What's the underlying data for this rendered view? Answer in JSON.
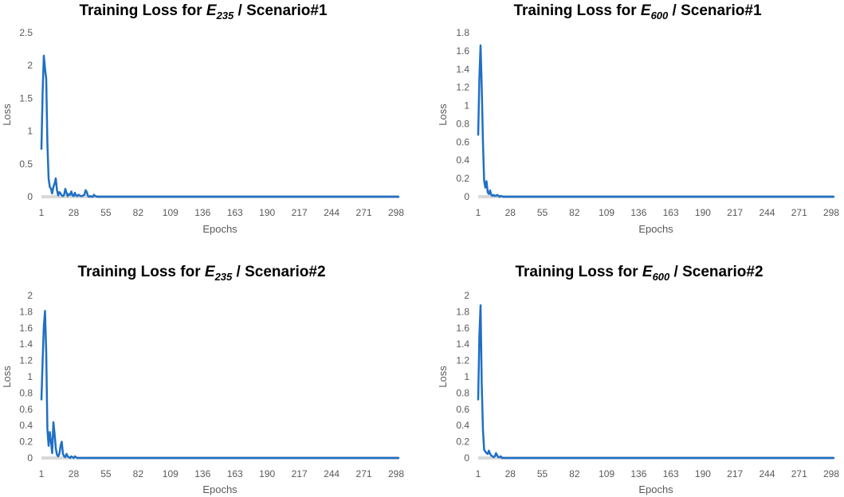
{
  "chart_data": [
    {
      "type": "line",
      "title": {
        "prefix": "Training Loss for ",
        "var": "E",
        "sub": "235",
        "suffix": " / Scenario#1"
      },
      "xlabel": "Epochs",
      "ylabel": "Loss",
      "x_tick_labels": [
        "1",
        "28",
        "55",
        "82",
        "109",
        "136",
        "163",
        "190",
        "217",
        "244",
        "271",
        "298"
      ],
      "y_tick_labels": [
        "0",
        "0.5",
        "1",
        "1.5",
        "2",
        "2.5"
      ],
      "xlim": [
        1,
        300
      ],
      "ylim": [
        0,
        2.5
      ],
      "grid": false,
      "color": "#1F6FC5",
      "series": [
        {
          "points": [
            [
              1,
              0.73
            ],
            [
              2,
              1.6
            ],
            [
              3,
              2.15
            ],
            [
              4,
              1.95
            ],
            [
              5,
              1.8
            ],
            [
              6,
              0.8
            ],
            [
              7,
              0.28
            ],
            [
              8,
              0.15
            ],
            [
              9,
              0.12
            ],
            [
              10,
              0.05
            ],
            [
              11,
              0.15
            ],
            [
              12,
              0.2
            ],
            [
              13,
              0.28
            ],
            [
              14,
              0.1
            ],
            [
              15,
              0.02
            ],
            [
              16,
              0.07
            ],
            [
              17,
              0.05
            ],
            [
              18,
              0.02
            ],
            [
              19,
              0.01
            ],
            [
              20,
              0.03
            ],
            [
              21,
              0.12
            ],
            [
              22,
              0.06
            ],
            [
              23,
              0.01
            ],
            [
              24,
              0.04
            ],
            [
              25,
              0.03
            ],
            [
              26,
              0.08
            ],
            [
              27,
              0.02
            ],
            [
              28,
              0.01
            ],
            [
              29,
              0.06
            ],
            [
              30,
              0.02
            ],
            [
              31,
              0.01
            ],
            [
              32,
              0.03
            ],
            [
              33,
              0.02
            ],
            [
              34,
              0.01
            ],
            [
              35,
              0.01
            ],
            [
              36,
              0.02
            ],
            [
              37,
              0.03
            ],
            [
              38,
              0.1
            ],
            [
              39,
              0.07
            ],
            [
              40,
              0.01
            ],
            [
              41,
              0.0
            ],
            [
              42,
              0.01
            ],
            [
              43,
              0.0
            ],
            [
              44,
              0.0
            ],
            [
              45,
              0.03
            ],
            [
              46,
              0.01
            ],
            [
              48,
              0.0
            ],
            [
              300,
              0.0
            ]
          ]
        }
      ]
    },
    {
      "type": "line",
      "title": {
        "prefix": "Training Loss for ",
        "var": "E",
        "sub": "600",
        "suffix": " / Scenario#1"
      },
      "xlabel": "Epochs",
      "ylabel": "Loss",
      "x_tick_labels": [
        "1",
        "28",
        "55",
        "82",
        "109",
        "136",
        "163",
        "190",
        "217",
        "244",
        "271",
        "298"
      ],
      "y_tick_labels": [
        "0",
        "0.2",
        "0.4",
        "0.6",
        "0.8",
        "1",
        "1.2",
        "1.4",
        "1.6",
        "1.8"
      ],
      "xlim": [
        1,
        300
      ],
      "ylim": [
        0,
        1.8
      ],
      "grid": false,
      "color": "#1F6FC5",
      "series": [
        {
          "points": [
            [
              1,
              0.68
            ],
            [
              2,
              1.3
            ],
            [
              3,
              1.66
            ],
            [
              4,
              1.2
            ],
            [
              5,
              0.6
            ],
            [
              6,
              0.18
            ],
            [
              7,
              0.1
            ],
            [
              8,
              0.17
            ],
            [
              9,
              0.05
            ],
            [
              10,
              0.03
            ],
            [
              11,
              0.07
            ],
            [
              12,
              0.02
            ],
            [
              13,
              0.01
            ],
            [
              14,
              0.02
            ],
            [
              15,
              0.01
            ],
            [
              16,
              0.01
            ],
            [
              17,
              0.02
            ],
            [
              18,
              0.01
            ],
            [
              19,
              0.0
            ],
            [
              20,
              0.01
            ],
            [
              22,
              0.0
            ],
            [
              300,
              0.0
            ]
          ]
        }
      ]
    },
    {
      "type": "line",
      "title": {
        "prefix": "Training Loss for ",
        "var": "E",
        "sub": "235",
        "suffix": " / Scenario#2"
      },
      "xlabel": "Epochs",
      "ylabel": "Loss",
      "x_tick_labels": [
        "1",
        "28",
        "55",
        "82",
        "109",
        "136",
        "163",
        "190",
        "217",
        "244",
        "271",
        "298"
      ],
      "y_tick_labels": [
        "0",
        "0.2",
        "0.4",
        "0.6",
        "0.8",
        "1",
        "1.2",
        "1.4",
        "1.6",
        "1.8",
        "2"
      ],
      "xlim": [
        1,
        300
      ],
      "ylim": [
        0,
        2
      ],
      "grid": false,
      "color": "#1F6FC5",
      "series": [
        {
          "points": [
            [
              1,
              0.72
            ],
            [
              2,
              1.2
            ],
            [
              3,
              1.62
            ],
            [
              4,
              1.81
            ],
            [
              5,
              1.3
            ],
            [
              6,
              0.35
            ],
            [
              7,
              0.15
            ],
            [
              8,
              0.32
            ],
            [
              9,
              0.2
            ],
            [
              10,
              0.06
            ],
            [
              11,
              0.44
            ],
            [
              12,
              0.3
            ],
            [
              13,
              0.12
            ],
            [
              14,
              0.04
            ],
            [
              15,
              0.02
            ],
            [
              16,
              0.05
            ],
            [
              17,
              0.15
            ],
            [
              18,
              0.2
            ],
            [
              19,
              0.05
            ],
            [
              20,
              0.02
            ],
            [
              21,
              0.01
            ],
            [
              22,
              0.05
            ],
            [
              23,
              0.02
            ],
            [
              24,
              0.01
            ],
            [
              25,
              0.0
            ],
            [
              26,
              0.02
            ],
            [
              27,
              0.01
            ],
            [
              28,
              0.0
            ],
            [
              29,
              0.02
            ],
            [
              30,
              0.01
            ],
            [
              31,
              0.0
            ],
            [
              33,
              0.0
            ],
            [
              300,
              0.0
            ]
          ]
        }
      ]
    },
    {
      "type": "line",
      "title": {
        "prefix": "Training Loss for ",
        "var": "E",
        "sub": "600",
        "suffix": " / Scenario#2"
      },
      "xlabel": "Epochs",
      "ylabel": "Loss",
      "x_tick_labels": [
        "1",
        "28",
        "55",
        "82",
        "109",
        "136",
        "163",
        "190",
        "217",
        "244",
        "271",
        "298"
      ],
      "y_tick_labels": [
        "0",
        "0.2",
        "0.4",
        "0.6",
        "0.8",
        "1",
        "1.2",
        "1.4",
        "1.6",
        "1.8",
        "2"
      ],
      "xlim": [
        1,
        300
      ],
      "ylim": [
        0,
        2
      ],
      "grid": false,
      "color": "#1F6FC5",
      "series": [
        {
          "points": [
            [
              1,
              0.72
            ],
            [
              2,
              1.5
            ],
            [
              3,
              1.88
            ],
            [
              4,
              0.9
            ],
            [
              5,
              0.35
            ],
            [
              6,
              0.1
            ],
            [
              7,
              0.08
            ],
            [
              8,
              0.06
            ],
            [
              9,
              0.05
            ],
            [
              10,
              0.09
            ],
            [
              11,
              0.05
            ],
            [
              12,
              0.03
            ],
            [
              13,
              0.02
            ],
            [
              14,
              0.01
            ],
            [
              15,
              0.02
            ],
            [
              16,
              0.06
            ],
            [
              17,
              0.03
            ],
            [
              18,
              0.01
            ],
            [
              19,
              0.01
            ],
            [
              20,
              0.02
            ],
            [
              21,
              0.0
            ],
            [
              23,
              0.0
            ],
            [
              300,
              0.0
            ]
          ]
        }
      ]
    }
  ]
}
